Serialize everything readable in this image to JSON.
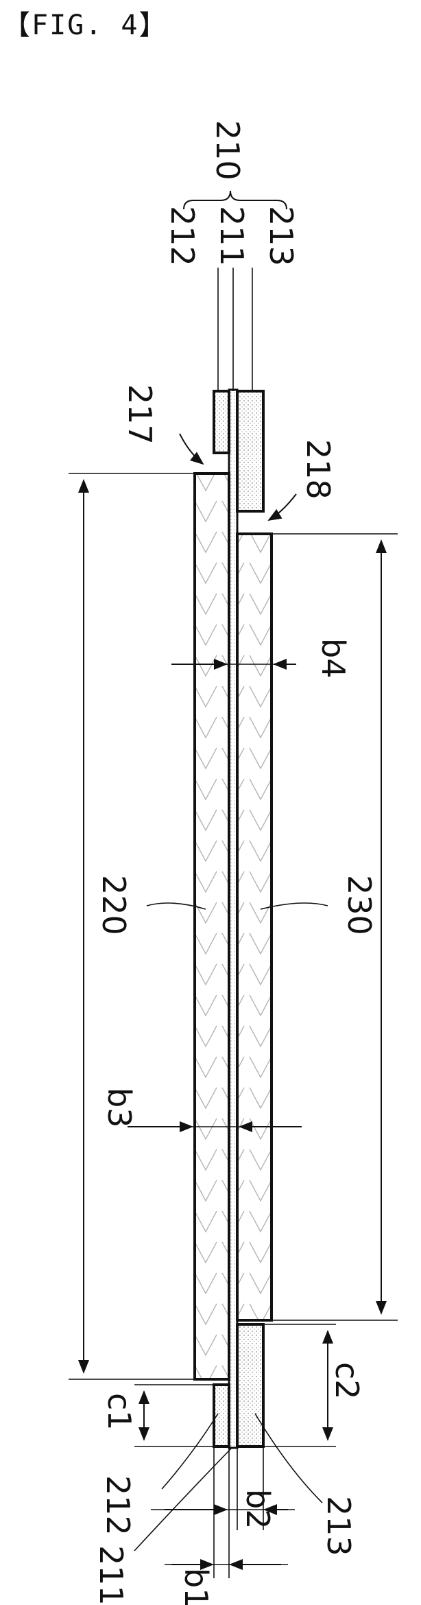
{
  "figure": {
    "title": "【FIG. 4】"
  },
  "labels": {
    "assembly": "210",
    "top_212": "212",
    "top_211": "211",
    "top_213": "213",
    "l217": "217",
    "l218": "218",
    "b4": "b4",
    "l220": "220",
    "l230": "230",
    "b3": "b3",
    "c1": "c1",
    "c2": "c2",
    "bot_212": "212",
    "bot_213": "213",
    "bot_211": "211",
    "b1": "b1",
    "b2": "b2"
  }
}
